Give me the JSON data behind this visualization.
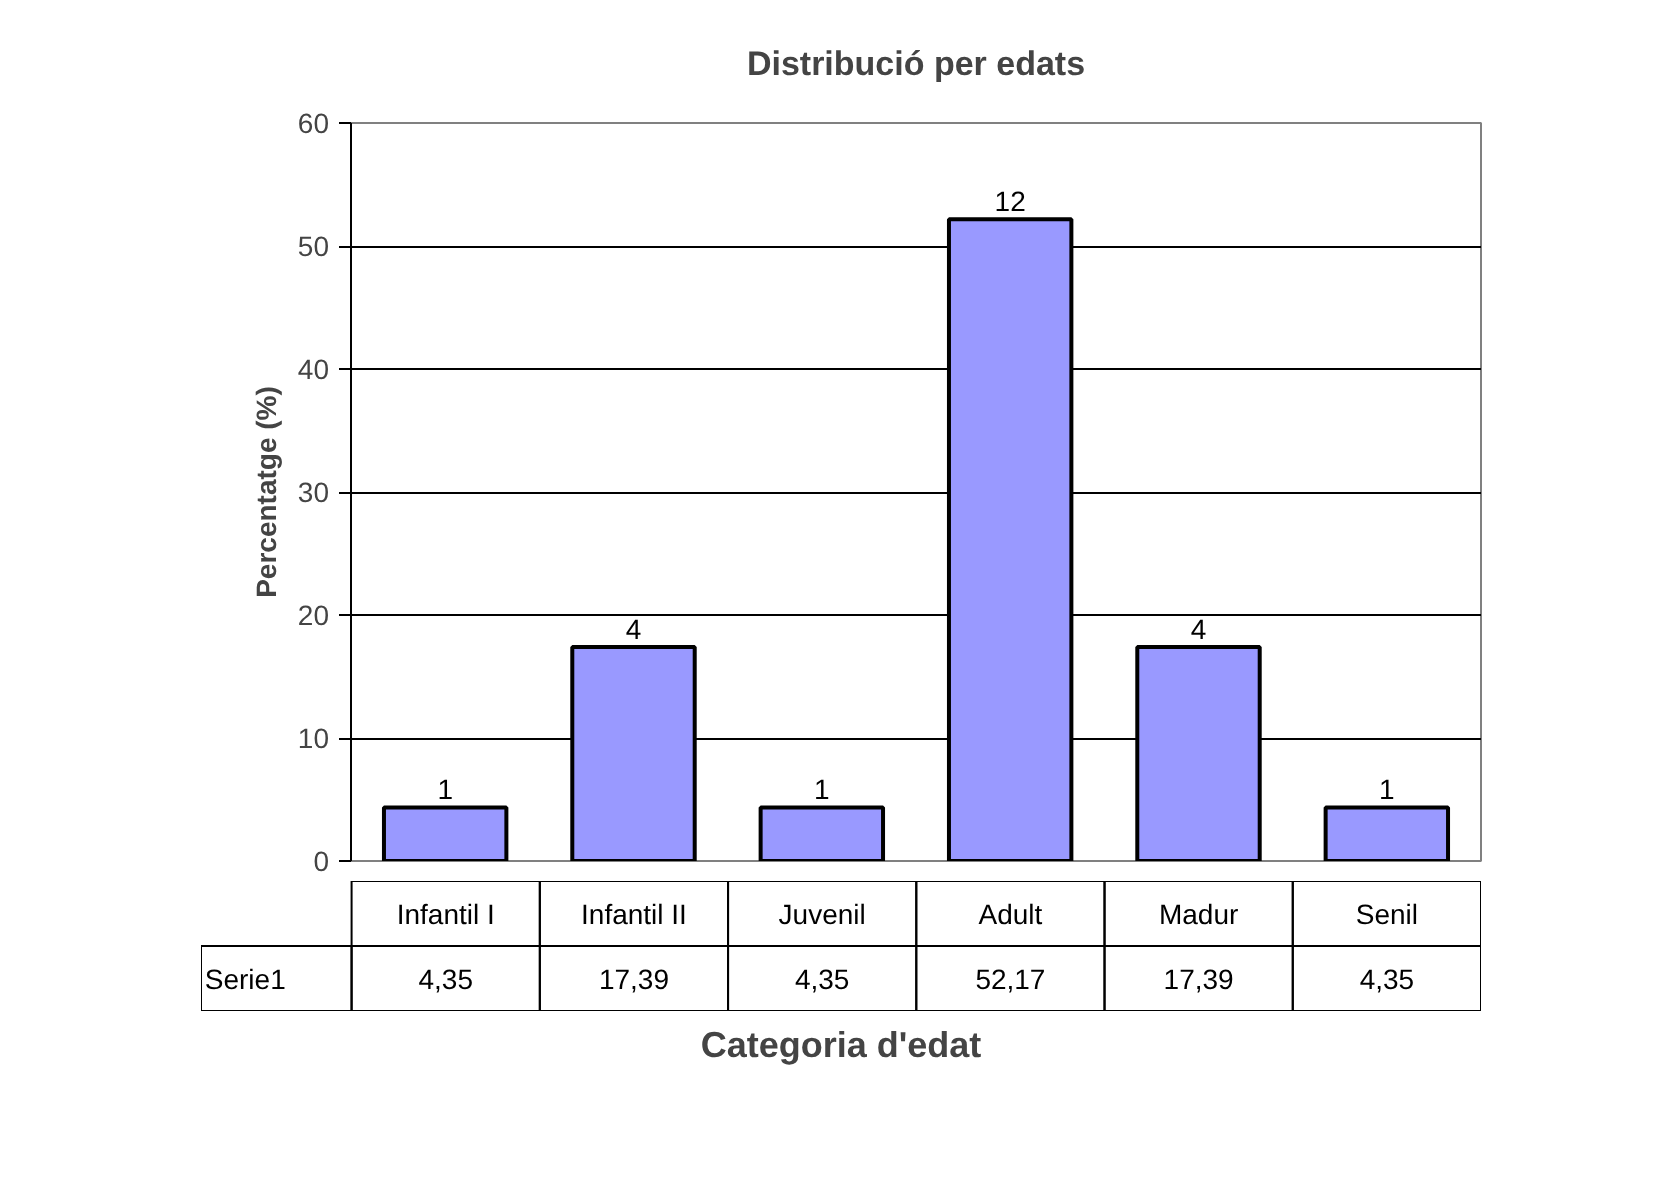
{
  "chart_data": {
    "type": "bar",
    "title": "Distribució per edats",
    "xlabel": "Categoria d'edat",
    "ylabel": "Percentatge (%)",
    "categories": [
      "Infantil I",
      "Infantil II",
      "Juvenil",
      "Adult",
      "Madur",
      "Senil"
    ],
    "series": [
      {
        "name": "Serie1",
        "color": "#9999ff",
        "values": [
          4.35,
          17.39,
          4.35,
          52.17,
          17.39,
          4.35
        ],
        "value_labels": [
          "4,35",
          "17,39",
          "4,35",
          "52,17",
          "17,39",
          "4,35"
        ]
      }
    ],
    "annotations": [
      "1",
      "4",
      "1",
      "12",
      "4",
      "1"
    ],
    "ylim": [
      0,
      60
    ],
    "yticks": [
      0,
      10,
      20,
      30,
      40,
      50,
      60
    ],
    "grid": "y"
  }
}
